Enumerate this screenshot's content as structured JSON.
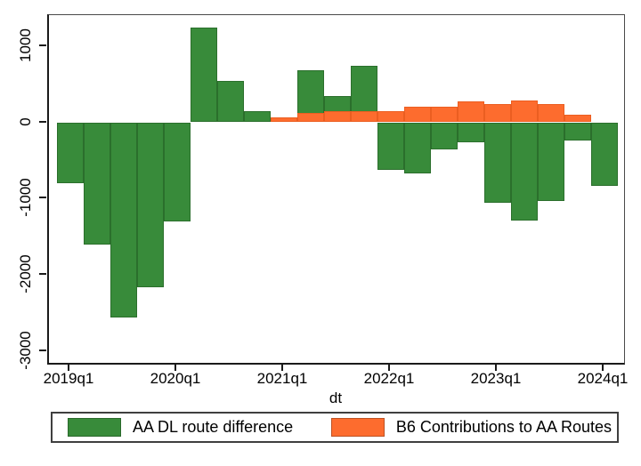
{
  "figure": {
    "background": "#ffffff"
  },
  "legend": {
    "position": "bottom",
    "items": [
      {
        "label": "AA DL route difference",
        "color": "#388b3a"
      },
      {
        "label": "B6 Contributions to AA Routes",
        "color": "#fd6c2e"
      }
    ]
  },
  "chart_data": {
    "type": "bar",
    "title": "",
    "xlabel": "dt",
    "ylabel": "",
    "grid": false,
    "legend_position": "bottom",
    "bar_mode": "overlay",
    "ylim": [
      -3190,
      1405
    ],
    "y_ticks": [
      1000,
      0,
      -1000,
      -2000,
      -3000
    ],
    "y_tick_labels": [
      "1000",
      "0",
      "-1000",
      "-2000",
      "-3000"
    ],
    "x_tick_labels": [
      "2019q1",
      "2020q1",
      "2021q1",
      "2022q1",
      "2023q1",
      "2024q1"
    ],
    "categories": [
      "2019q1",
      "2019q2",
      "2019q3",
      "2019q4",
      "2020q1",
      "2020q2",
      "2020q3",
      "2020q4",
      "2021q1",
      "2021q2",
      "2021q3",
      "2021q4",
      "2022q1",
      "2022q2",
      "2022q3",
      "2022q4",
      "2023q1",
      "2023q2",
      "2023q3",
      "2023q4",
      "2024q1"
    ],
    "series": [
      {
        "name": "AA DL route difference",
        "color": "#388b3a",
        "values": [
          -800,
          -1600,
          -2560,
          -2160,
          -1300,
          1240,
          540,
          145,
          null,
          680,
          350,
          745,
          -620,
          -675,
          -360,
          -265,
          -1060,
          -1285,
          -1030,
          -235,
          -830
        ]
      },
      {
        "name": "B6 Contributions to AA Routes",
        "color": "#fd6c2e",
        "values": [
          null,
          null,
          null,
          null,
          null,
          null,
          null,
          null,
          70,
          125,
          145,
          145,
          150,
          200,
          200,
          270,
          240,
          290,
          240,
          100,
          null
        ]
      }
    ]
  }
}
